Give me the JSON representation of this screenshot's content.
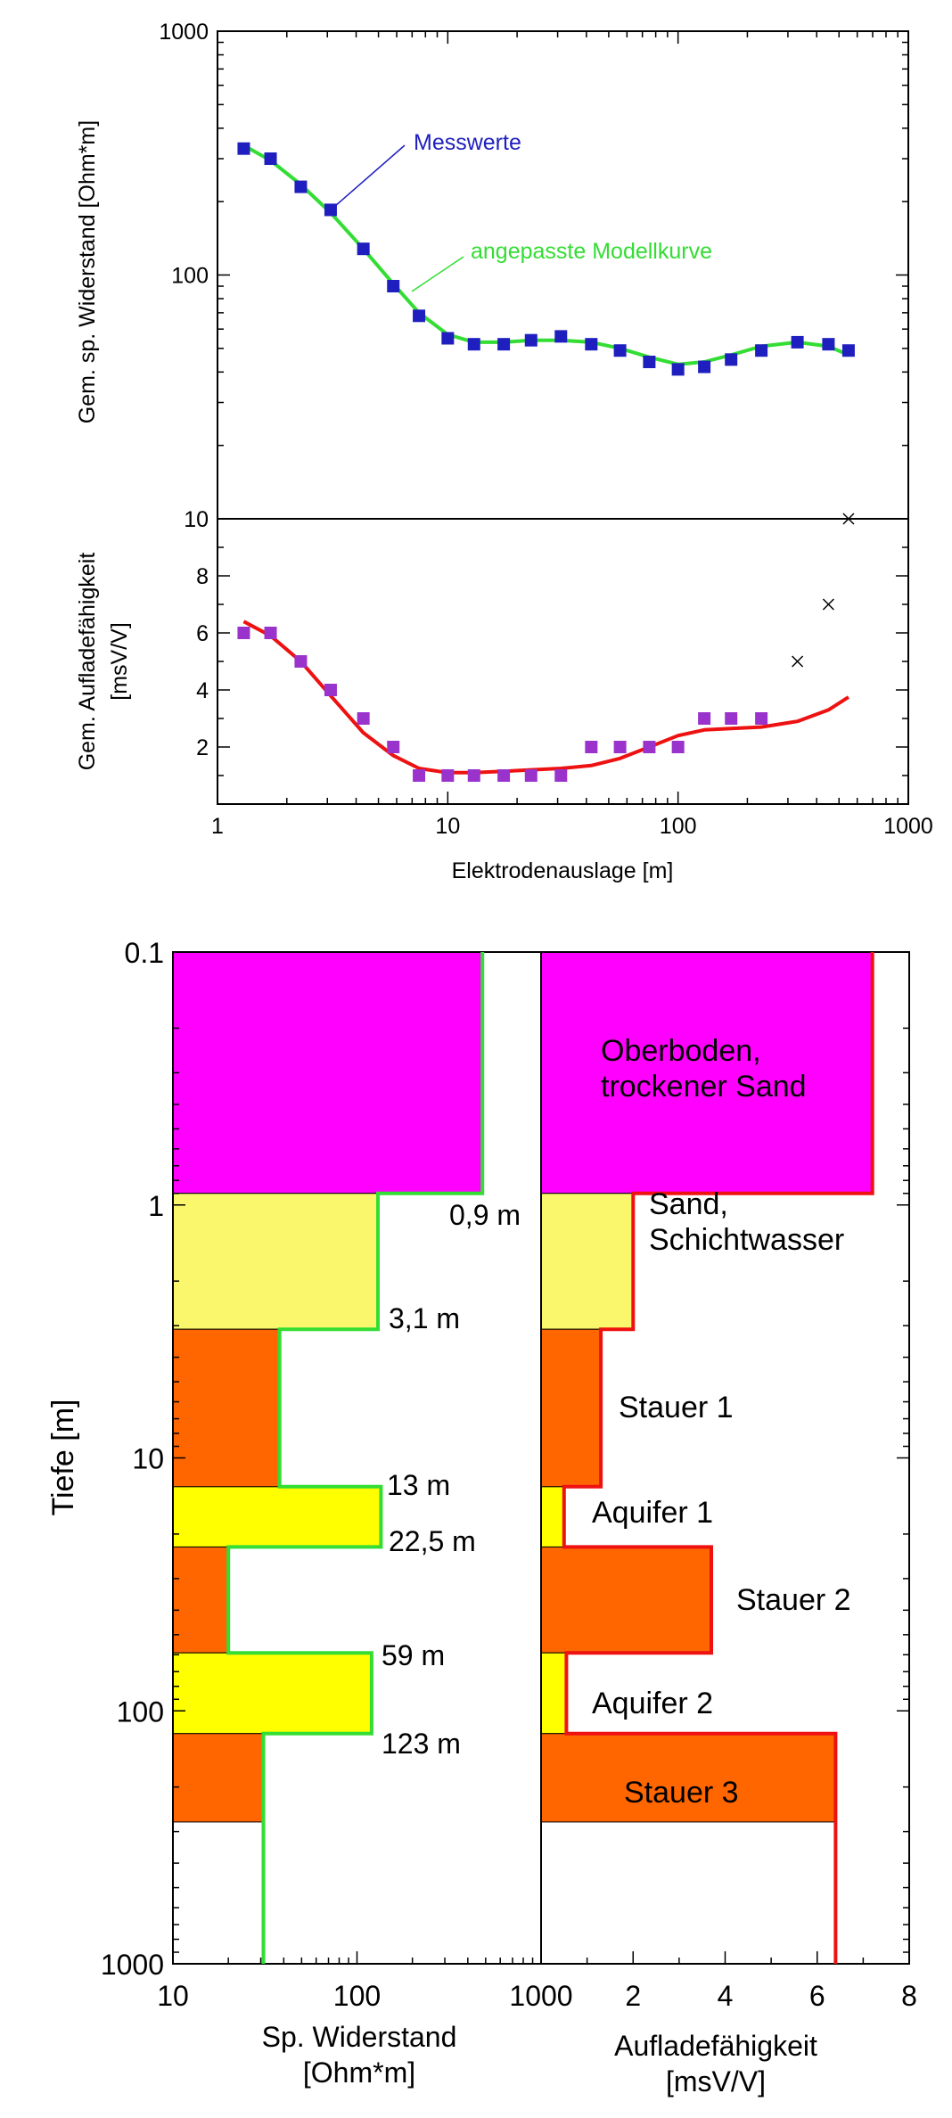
{
  "colors": {
    "measured_resistivity": "#1f1fbf",
    "fitted_resistivity": "#33dd33",
    "measured_chargeability": "#9933cc",
    "fitted_chargeability": "#ee1111",
    "outlier_marker": "#000000",
    "layer_topsoil": "#ff00ff",
    "layer_sand": "#fbf76c",
    "layer_aquitard": "#ff6600",
    "layer_aquifer": "#ffff00"
  },
  "chart_data": [
    {
      "type": "scatter",
      "chart_id": "resistivity_sounding",
      "ylabel": "Gem. sp. Widerstand [Ohm*m]",
      "xscale": "log",
      "yscale": "log",
      "xlim": [
        1,
        1000
      ],
      "ylim": [
        10,
        1000
      ],
      "yticks": [
        10,
        100,
        1000
      ],
      "yticklabels": [
        "10",
        "100",
        "1000"
      ],
      "series": [
        {
          "name": "Messwerte",
          "kind": "markers",
          "x": [
            1.3,
            1.7,
            2.3,
            3.1,
            4.3,
            5.8,
            7.5,
            10,
            13,
            17.5,
            23,
            31,
            42,
            56,
            75,
            100,
            130,
            170,
            230,
            330,
            450,
            550
          ],
          "y": [
            330,
            300,
            230,
            185,
            128,
            90,
            68,
            55,
            52,
            52,
            54,
            56,
            52,
            49,
            44,
            41,
            42,
            45,
            49,
            53,
            52,
            49
          ]
        },
        {
          "name": "angepasste Modellkurve",
          "kind": "line",
          "x": [
            1.3,
            1.7,
            2.3,
            3.1,
            4.3,
            5.8,
            7.5,
            10,
            13,
            17.5,
            23,
            31,
            42,
            56,
            75,
            100,
            130,
            170,
            230,
            330,
            450,
            550
          ],
          "y": [
            340,
            295,
            235,
            180,
            128,
            92,
            70,
            57,
            53,
            53,
            54,
            54,
            53,
            50,
            46,
            43,
            44,
            47,
            51,
            53,
            51,
            47
          ]
        }
      ]
    },
    {
      "type": "scatter",
      "chart_id": "chargeability_sounding",
      "ylabel": "Gem. Aufladefähigkeit [msV/V]",
      "xlabel": "Elektrodenauslage [m]",
      "xscale": "log",
      "xlim": [
        1,
        1000
      ],
      "ylim": [
        0,
        10
      ],
      "xticks": [
        1,
        10,
        100,
        1000
      ],
      "xticklabels": [
        "1",
        "10",
        "100",
        "1000"
      ],
      "yticks": [
        2,
        4,
        6,
        8
      ],
      "yticklabels": [
        "2",
        "4",
        "6",
        "8"
      ],
      "series": [
        {
          "name": "Messwerte",
          "kind": "markers",
          "x": [
            1.3,
            1.7,
            2.3,
            3.1,
            4.3,
            5.8,
            7.5,
            10,
            13,
            17.5,
            23,
            31,
            42,
            56,
            75,
            100,
            130,
            170,
            230
          ],
          "y": [
            6,
            6,
            5,
            4,
            3,
            2,
            1,
            1,
            1,
            1,
            1,
            1,
            2,
            2,
            2,
            2,
            3,
            3,
            3
          ]
        },
        {
          "name": "angepasste Modellkurve",
          "kind": "line",
          "x": [
            1.3,
            1.7,
            2.3,
            3.1,
            4.3,
            5.8,
            7.5,
            10,
            13,
            17.5,
            23,
            31,
            42,
            56,
            75,
            100,
            130,
            170,
            230,
            330,
            450,
            550
          ],
          "y": [
            6.4,
            5.9,
            5.0,
            3.8,
            2.5,
            1.7,
            1.25,
            1.1,
            1.1,
            1.15,
            1.2,
            1.25,
            1.35,
            1.6,
            2.0,
            2.4,
            2.6,
            2.65,
            2.7,
            2.9,
            3.3,
            3.75
          ]
        },
        {
          "name": "",
          "kind": "cross",
          "x": [
            330,
            450,
            550
          ],
          "y": [
            5,
            7,
            10
          ]
        }
      ]
    },
    {
      "type": "step",
      "chart_id": "resistivity_model",
      "ylabel": "Tiefe [m]",
      "xlabel": "Sp. Widerstand [Ohm*m]",
      "xscale": "log",
      "yscale": "log",
      "yinverted": true,
      "xlim": [
        10,
        1000
      ],
      "ylim": [
        0.1,
        1000
      ],
      "xticks": [
        10,
        100,
        1000
      ],
      "xticklabels": [
        "10",
        "100",
        "1000"
      ],
      "yticks": [
        0.1,
        1,
        10,
        100,
        1000
      ],
      "yticklabels": [
        "0.1",
        "1",
        "10",
        "100",
        "1000"
      ],
      "layers": [
        {
          "top": 0.1,
          "bottom": 0.9,
          "value": 480,
          "fill": "topsoil",
          "boundary_label": "0,9 m"
        },
        {
          "top": 0.9,
          "bottom": 3.1,
          "value": 130,
          "fill": "sand",
          "boundary_label": "3,1 m"
        },
        {
          "top": 3.1,
          "bottom": 13,
          "value": 38,
          "fill": "aquitard",
          "boundary_label": "13 m"
        },
        {
          "top": 13,
          "bottom": 22.5,
          "value": 135,
          "fill": "aquifer",
          "boundary_label": "22,5 m"
        },
        {
          "top": 22.5,
          "bottom": 59,
          "value": 20,
          "fill": "aquitard",
          "boundary_label": "59 m"
        },
        {
          "top": 59,
          "bottom": 123,
          "value": 120,
          "fill": "aquifer",
          "boundary_label": "123 m"
        },
        {
          "top": 123,
          "bottom": 275,
          "value": 31,
          "fill": "aquitard",
          "boundary_label": ""
        },
        {
          "top": 275,
          "bottom": 1000,
          "value": 31,
          "fill": "none",
          "boundary_label": ""
        }
      ]
    },
    {
      "type": "step",
      "chart_id": "chargeability_model",
      "xlabel": "Aufladefähigkeit [msV/V]",
      "yscale": "log",
      "yinverted": true,
      "xlim": [
        0,
        8
      ],
      "ylim": [
        0.1,
        1000
      ],
      "xticks": [
        0,
        2,
        4,
        6,
        8
      ],
      "xticklabels": [
        "0",
        "2",
        "4",
        "6",
        "8"
      ],
      "layers": [
        {
          "top": 0.1,
          "bottom": 0.9,
          "value": 7.2,
          "fill": "topsoil",
          "label": "Oberboden, trockener Sand"
        },
        {
          "top": 0.9,
          "bottom": 3.1,
          "value": 2.0,
          "fill": "sand",
          "label": "Sand, Schichtwasser"
        },
        {
          "top": 3.1,
          "bottom": 13,
          "value": 1.3,
          "fill": "aquitard",
          "label": "Stauer 1"
        },
        {
          "top": 13,
          "bottom": 22.5,
          "value": 0.5,
          "fill": "aquifer",
          "label": "Aquifer 1"
        },
        {
          "top": 22.5,
          "bottom": 59,
          "value": 3.7,
          "fill": "aquitard",
          "label": "Stauer 2"
        },
        {
          "top": 59,
          "bottom": 123,
          "value": 0.55,
          "fill": "aquifer",
          "label": "Aquifer 2"
        },
        {
          "top": 123,
          "bottom": 275,
          "value": 6.4,
          "fill": "aquitard",
          "label": "Stauer 3"
        },
        {
          "top": 275,
          "bottom": 1000,
          "value": 6.4,
          "fill": "none",
          "label": ""
        }
      ]
    }
  ]
}
